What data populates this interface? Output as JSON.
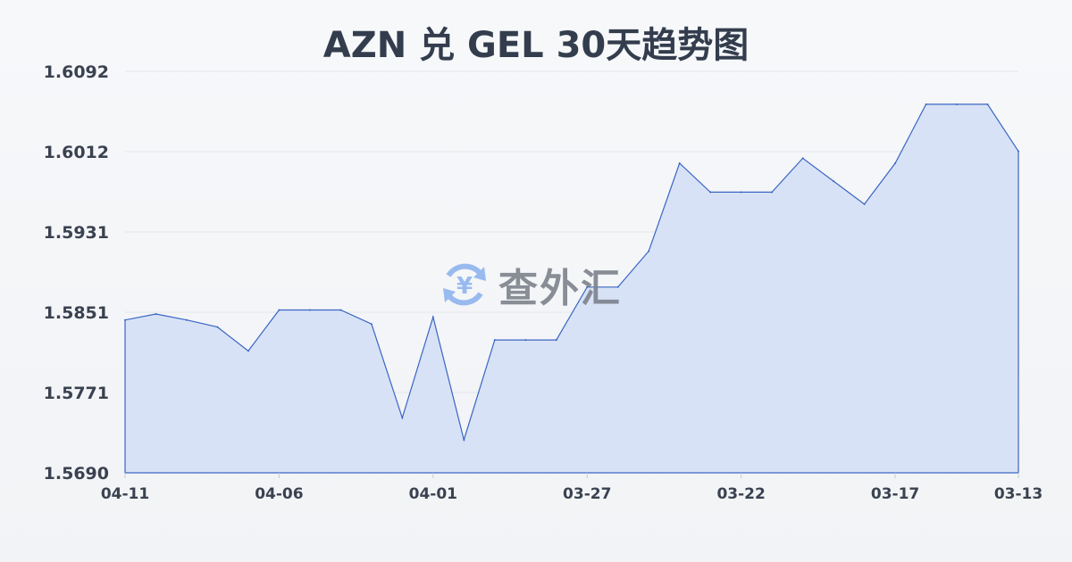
{
  "chart_data": {
    "type": "area",
    "title": "AZN 兑 GEL 30天趋势图",
    "xlabel": "",
    "ylabel": "",
    "x": [
      "04-11",
      "04-10",
      "04-09",
      "04-08",
      "04-07",
      "04-06",
      "04-05",
      "04-04",
      "04-03",
      "04-02",
      "04-01",
      "03-31",
      "03-30",
      "03-29",
      "03-28",
      "03-27",
      "03-26",
      "03-25",
      "03-24",
      "03-23",
      "03-22",
      "03-21",
      "03-20",
      "03-19",
      "03-18",
      "03-17",
      "03-16",
      "03-15",
      "03-14",
      "03-13"
    ],
    "values": [
      1.5843,
      1.5849,
      1.5843,
      1.5836,
      1.5812,
      1.5853,
      1.5853,
      1.5853,
      1.5839,
      1.5745,
      1.5846,
      1.5723,
      1.5823,
      1.5823,
      1.5823,
      1.5876,
      1.5876,
      1.5912,
      1.6,
      1.5971,
      1.5971,
      1.5971,
      1.6005,
      1.5982,
      1.5959,
      1.6,
      1.6059,
      1.6059,
      1.6059,
      1.6012
    ],
    "x_tick_labels": [
      "04-11",
      "04-06",
      "04-01",
      "03-27",
      "03-22",
      "03-17",
      "03-13"
    ],
    "y_tick_labels": [
      "1.6092",
      "1.6012",
      "1.5931",
      "1.5851",
      "1.5771",
      "1.5690"
    ],
    "ylim": [
      1.569,
      1.6092
    ],
    "grid": true,
    "colors": {
      "line": "#3a66c4",
      "fill": "#d6e0f5",
      "grid": "#e3e6ea"
    }
  },
  "watermark": {
    "text": "查外汇",
    "icon": "yen-exchange-icon"
  }
}
